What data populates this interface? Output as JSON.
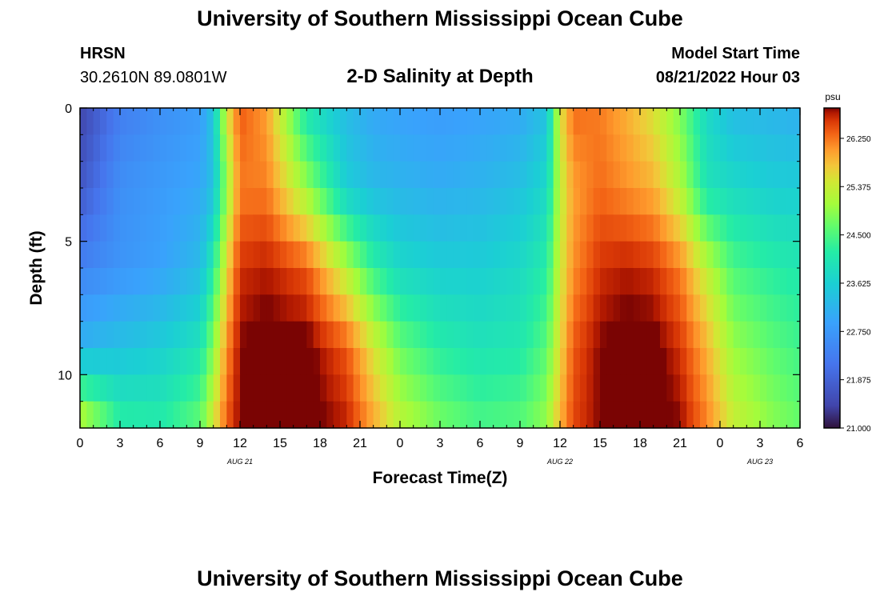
{
  "header": {
    "title": "University of Southern Mississippi Ocean Cube",
    "station": "HRSN",
    "coords": "30.2610N  89.0801W",
    "subtitle": "2-D Salinity at Depth",
    "start_label": "Model Start Time",
    "start_value": "08/21/2022 Hour 03"
  },
  "footer": {
    "title": "University of Southern Mississippi Ocean Cube"
  },
  "chart_data": {
    "type": "heatmap",
    "xlabel": "Forecast Time(Z)",
    "ylabel": "Depth (ft)",
    "x_range_hours": [
      0,
      54
    ],
    "y_range_ft": [
      0,
      12
    ],
    "y_inverted": true,
    "x_ticks": [
      "0",
      "3",
      "6",
      "9",
      "12",
      "15",
      "18",
      "21",
      "0",
      "3",
      "6",
      "9",
      "12",
      "15",
      "18",
      "21",
      "0",
      "3",
      "6"
    ],
    "y_ticks": [
      "0",
      "5",
      "10"
    ],
    "date_labels": [
      {
        "label": "AUG 21",
        "hour": 12
      },
      {
        "label": "AUG 22",
        "hour": 36
      },
      {
        "label": "AUG 23",
        "hour": 51
      }
    ],
    "colorbar": {
      "unit": "psu",
      "min": 21.0,
      "max": 26.8,
      "ticks": [
        "21.000",
        "21.875",
        "22.750",
        "23.625",
        "24.500",
        "25.375",
        "26.250"
      ]
    },
    "approx_salinity_by_level": {
      "levels_ft": [
        0,
        3,
        6,
        9,
        12
      ],
      "times_hr": [
        0,
        3,
        6,
        9,
        10,
        11,
        12,
        14,
        17,
        20,
        22,
        24,
        27,
        30,
        33,
        35,
        36,
        37,
        39,
        41,
        43,
        45,
        47,
        49,
        52,
        54
      ],
      "values": [
        [
          21.4,
          22.3,
          22.6,
          22.8,
          23.5,
          25.5,
          26.4,
          26.0,
          24.0,
          23.3,
          23.0,
          22.9,
          22.8,
          22.9,
          23.0,
          23.4,
          25.5,
          26.3,
          26.2,
          25.9,
          25.5,
          24.8,
          23.8,
          23.3,
          23.2,
          23.1
        ],
        [
          21.7,
          22.6,
          22.8,
          23.0,
          23.4,
          25.0,
          26.2,
          26.2,
          25.0,
          23.6,
          23.3,
          23.2,
          23.1,
          23.2,
          23.4,
          23.8,
          25.3,
          26.0,
          26.3,
          26.1,
          25.9,
          25.2,
          24.0,
          23.8,
          23.6,
          23.6
        ],
        [
          22.4,
          22.7,
          22.9,
          23.3,
          24.2,
          25.6,
          26.6,
          26.7,
          26.4,
          25.2,
          24.3,
          23.8,
          23.6,
          23.6,
          23.8,
          24.2,
          25.4,
          26.1,
          26.6,
          26.7,
          26.6,
          26.2,
          25.3,
          24.5,
          24.2,
          24.1
        ],
        [
          23.2,
          23.4,
          23.6,
          24.0,
          24.9,
          26.1,
          26.8,
          26.9,
          26.9,
          26.4,
          25.5,
          24.7,
          24.2,
          24.0,
          24.1,
          24.6,
          25.6,
          26.4,
          26.8,
          26.9,
          26.9,
          26.6,
          25.9,
          25.0,
          24.6,
          24.4
        ],
        [
          25.5,
          24.3,
          24.2,
          24.7,
          25.5,
          26.4,
          26.8,
          26.9,
          26.9,
          26.7,
          26.0,
          25.3,
          24.8,
          24.5,
          24.6,
          25.0,
          25.9,
          26.5,
          26.8,
          26.9,
          26.9,
          26.8,
          26.2,
          25.4,
          24.9,
          24.7
        ]
      ]
    }
  }
}
